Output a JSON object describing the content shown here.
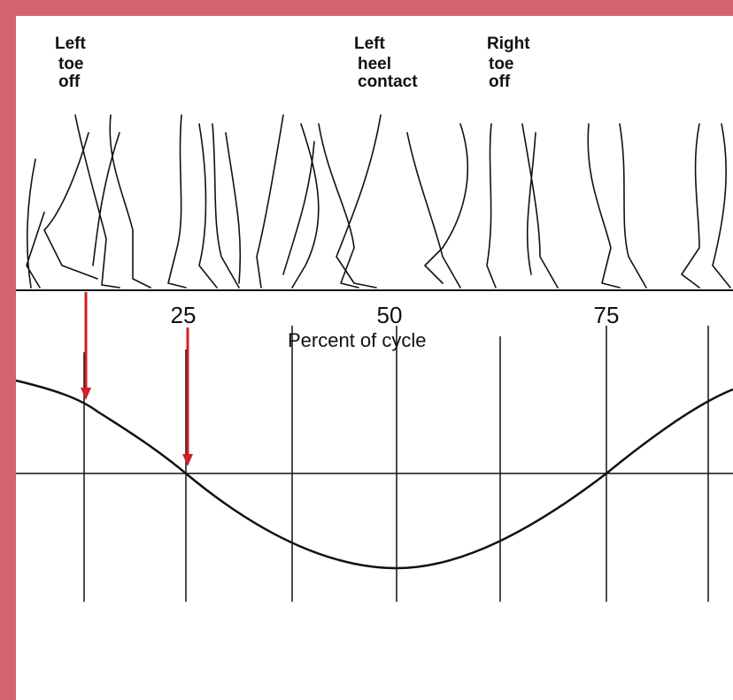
{
  "events": [
    {
      "lines": [
        "Left",
        "toe",
        "off"
      ]
    },
    {
      "lines": [
        "Left",
        "heel",
        "contact"
      ]
    },
    {
      "lines": [
        "Right",
        "toe",
        "off"
      ]
    }
  ],
  "axis": {
    "ticks": [
      "25",
      "50",
      "75"
    ],
    "title": "Percent of cycle"
  }
}
